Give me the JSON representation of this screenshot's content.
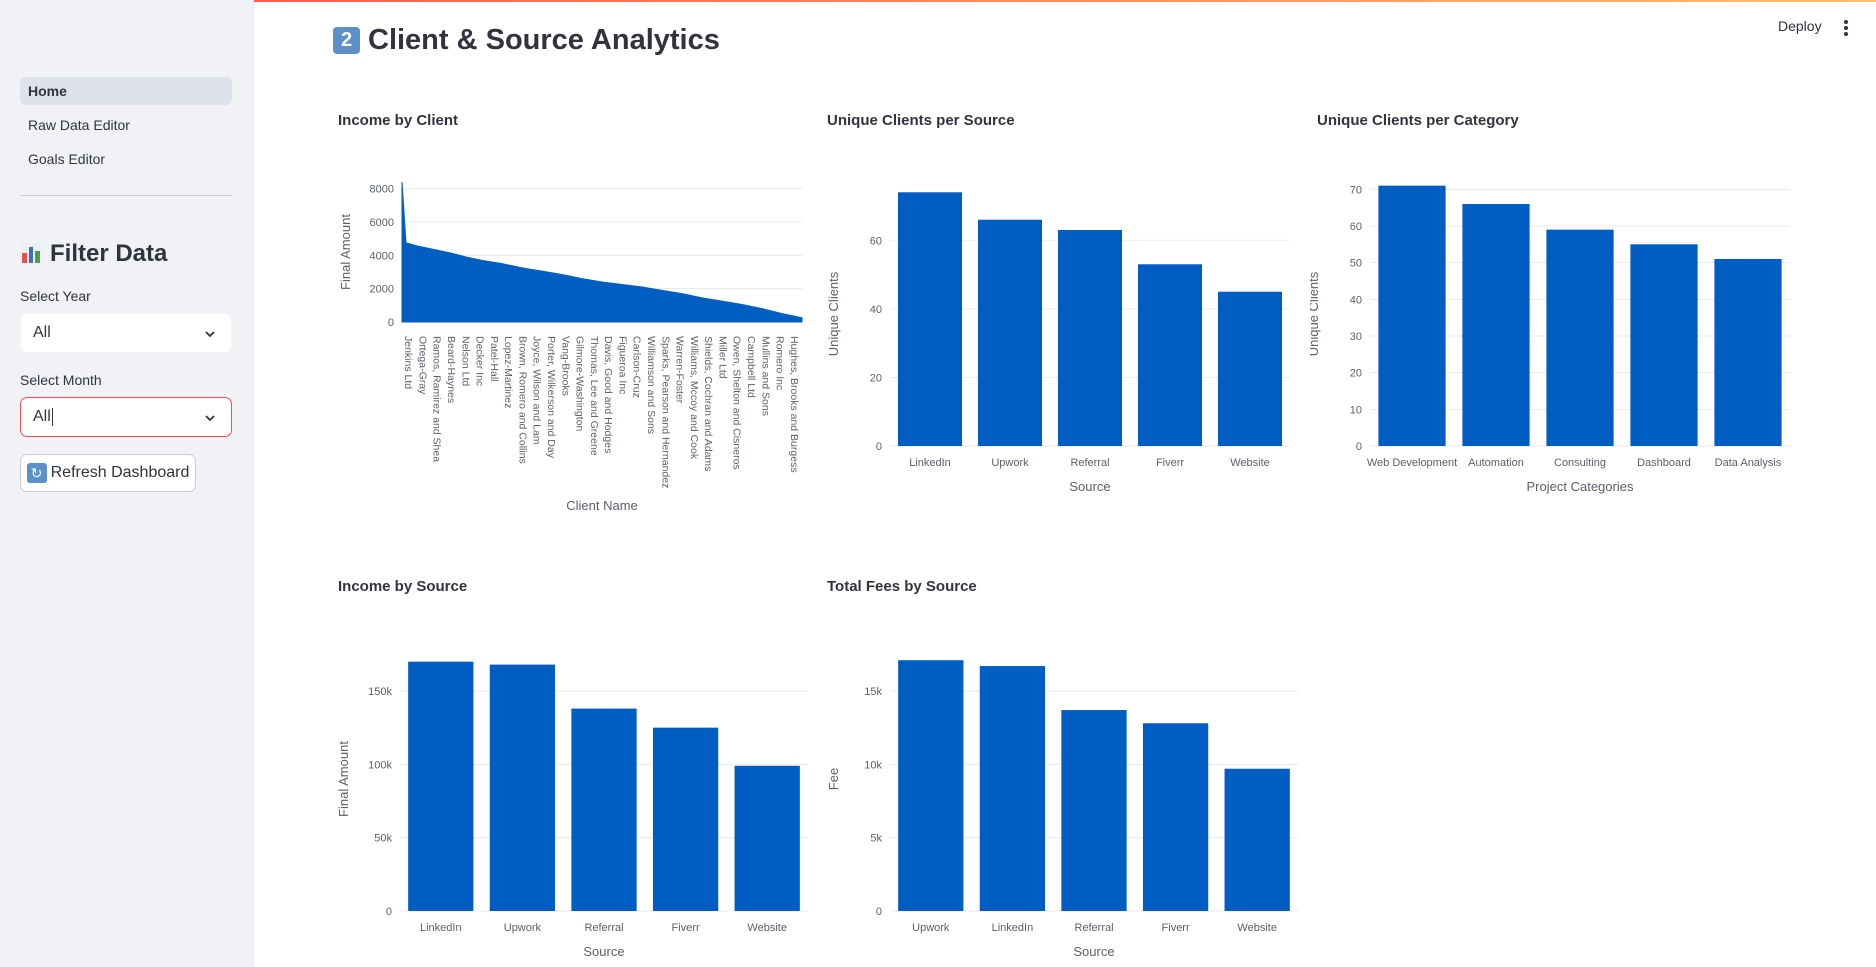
{
  "app": {
    "deploy_label": "Deploy",
    "menu_icon": "kebab-menu-icon"
  },
  "sidebar": {
    "nav": [
      {
        "label": "Home",
        "active": true
      },
      {
        "label": "Raw Data Editor",
        "active": false
      },
      {
        "label": "Goals Editor",
        "active": false
      }
    ],
    "filter_title": "Filter Data",
    "year_label": "Select Year",
    "year_value": "All",
    "month_label": "Select Month",
    "month_value": "All",
    "refresh_label": "Refresh Dashboard"
  },
  "page": {
    "title": "Client & Source Analytics",
    "title_badge": "2"
  },
  "colors": {
    "bar": "#005dc1",
    "accent": "#ff4b4b",
    "grid": "#e8eaee",
    "tick": "#5a5f6b"
  },
  "chart_data": [
    {
      "id": "income-by-client",
      "type": "area",
      "title": "Income by Client",
      "xlabel": "Client Name",
      "ylabel": "Final Amount",
      "ylim": [
        0,
        8400
      ],
      "yticks": [
        0,
        2000,
        4000,
        6000,
        8000
      ],
      "ytick_labels": [
        "0",
        "2000",
        "4000",
        "6000",
        "8000"
      ],
      "tick_labels": [
        "Jenkins Ltd",
        "Ortega-Gray",
        "Ramos, Ramirez and Shea",
        "Beard-Haynes",
        "Nelson Ltd",
        "Decker Inc",
        "Patel-Hall",
        "Lopez-Martinez",
        "Brown, Romero and Collins",
        "Joyce, Wilson and Lam",
        "Porter, Wilkerson and Day",
        "Vang-Brooks",
        "Gilmore-Washington",
        "Thomas, Lee and Greene",
        "Davis, Good and Hodges",
        "Figueroa Inc",
        "Carlson-Cruz",
        "Williamson and Sons",
        "Sparks, Pearson and Hernandez",
        "Warren-Foster",
        "Williams, Mccoy and Cook",
        "Shields, Cochran and Adams",
        "Miller Ltd",
        "Owen, Shelton and Cisneros",
        "Campbell Ltd",
        "Mullins and Sons",
        "Romero Inc",
        "Hughes, Brooks and Burgess"
      ],
      "x": [
        0,
        0.01,
        0.04,
        0.08,
        0.12,
        0.16,
        0.2,
        0.25,
        0.3,
        0.35,
        0.4,
        0.45,
        0.5,
        0.55,
        0.6,
        0.65,
        0.7,
        0.75,
        0.8,
        0.85,
        0.9,
        0.95,
        1.0
      ],
      "values": [
        8400,
        4750,
        4550,
        4350,
        4150,
        3900,
        3700,
        3500,
        3250,
        3050,
        2850,
        2600,
        2400,
        2250,
        2100,
        1900,
        1700,
        1450,
        1250,
        1050,
        800,
        500,
        250
      ]
    },
    {
      "id": "unique-clients-per-source",
      "type": "bar",
      "title": "Unique Clients per Source",
      "xlabel": "Source",
      "ylabel": "Unique Clients",
      "categories": [
        "LinkedIn",
        "Upwork",
        "Referral",
        "Fiverr",
        "Website"
      ],
      "values": [
        74,
        66,
        63,
        53,
        45
      ],
      "ylim": [
        0,
        77
      ],
      "yticks": [
        0,
        20,
        40,
        60
      ],
      "ytick_labels": [
        "0",
        "20",
        "40",
        "60"
      ]
    },
    {
      "id": "unique-clients-per-category",
      "type": "bar",
      "title": "Unique Clients per Category",
      "xlabel": "Project Categories",
      "ylabel": "Unique Clients",
      "categories": [
        "Web Development",
        "Automation",
        "Consulting",
        "Dashboard",
        "Data Analysis"
      ],
      "values": [
        71,
        66,
        59,
        55,
        51
      ],
      "ylim": [
        0,
        72
      ],
      "yticks": [
        0,
        10,
        20,
        30,
        40,
        50,
        60,
        70
      ],
      "ytick_labels": [
        "0",
        "10",
        "20",
        "30",
        "40",
        "50",
        "60",
        "70"
      ]
    },
    {
      "id": "income-by-source",
      "type": "bar",
      "title": "Income by Source",
      "xlabel": "Source",
      "ylabel": "Final Amount",
      "categories": [
        "LinkedIn",
        "Upwork",
        "Referral",
        "Fiverr",
        "Website"
      ],
      "values": [
        170000,
        168000,
        138000,
        125000,
        99000
      ],
      "ylim": [
        0,
        180000
      ],
      "yticks": [
        0,
        50000,
        100000,
        150000
      ],
      "ytick_labels": [
        "0",
        "50k",
        "100k",
        "150k"
      ]
    },
    {
      "id": "total-fees-by-source",
      "type": "bar",
      "title": "Total Fees by Source",
      "xlabel": "Source",
      "ylabel": "Fee",
      "categories": [
        "Upwork",
        "LinkedIn",
        "Referral",
        "Fiverr",
        "Website"
      ],
      "values": [
        17100,
        16700,
        13700,
        12800,
        9700
      ],
      "ylim": [
        0,
        18000
      ],
      "yticks": [
        0,
        5000,
        10000,
        15000
      ],
      "ytick_labels": [
        "0",
        "5k",
        "10k",
        "15k"
      ]
    }
  ]
}
